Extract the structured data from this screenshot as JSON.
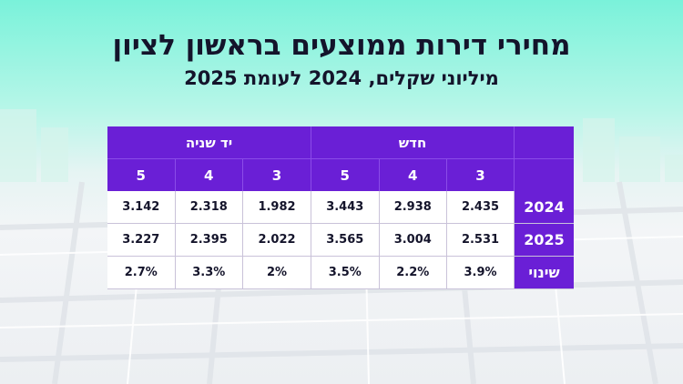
{
  "title": "מחירי דירות ממוצעים בראשון לציון",
  "subtitle": "מיליוני שקלים, 2024 לעומת 2025",
  "table": {
    "group_used": "יד שניה",
    "group_new": "חדש",
    "rooms": [
      "5",
      "4",
      "3",
      "5",
      "4",
      "3"
    ],
    "rows": [
      {
        "label": "2024",
        "values": [
          "3.142",
          "2.318",
          "1.982",
          "3.443",
          "2.938",
          "2.435"
        ]
      },
      {
        "label": "2025",
        "values": [
          "3.227",
          "2.395",
          "2.022",
          "3.565",
          "3.004",
          "2.531"
        ]
      },
      {
        "label": "שינוי",
        "values": [
          "2.7%",
          "3.3%",
          "2%",
          "3.5%",
          "2.2%",
          "3.9%"
        ]
      }
    ]
  },
  "colors": {
    "header_bg": "#6a1fd6",
    "header_text": "#ffffff",
    "cell_bg": "#ffffff",
    "background_top": "#7af2da"
  }
}
